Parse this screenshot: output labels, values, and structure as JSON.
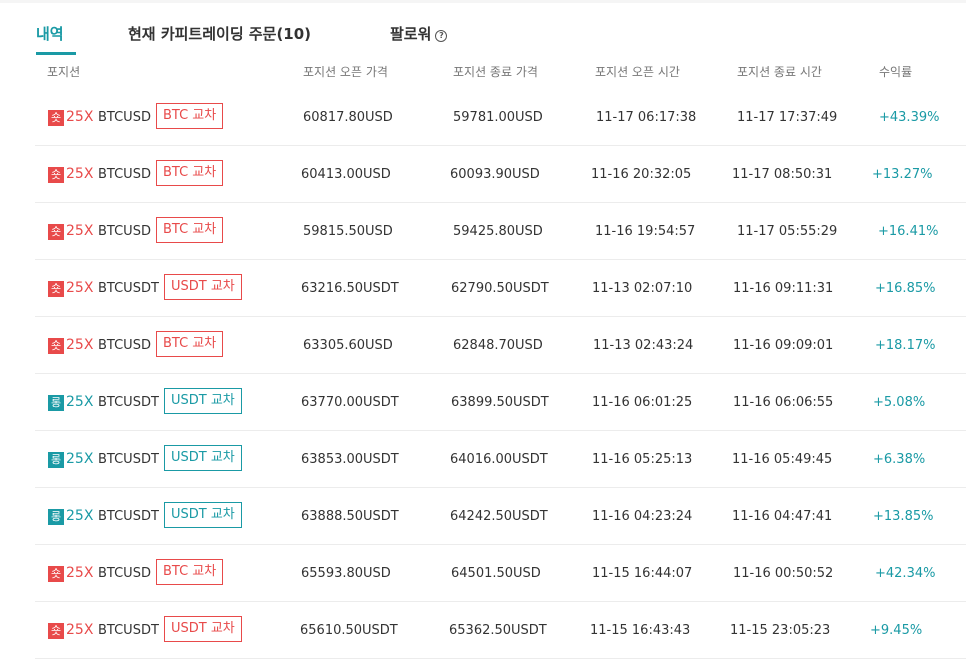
{
  "tabs": [
    {
      "label": "내역",
      "active": true
    },
    {
      "label": "현재 카피트레이딩 주문(10)",
      "active": false
    },
    {
      "label": "팔로워",
      "active": false,
      "help_icon": "?"
    }
  ],
  "columns": {
    "position": "포지션",
    "open_price": "포지션 오픈 가격",
    "close_price": "포지션 종료 가격",
    "open_time": "포지션 오픈 시간",
    "close_time": "포지션 종료 시간",
    "pnl": "수익률"
  },
  "colors": {
    "short": "#e84a4a",
    "long": "#1a9aa5",
    "accent": "#1a9aa5"
  },
  "rows": [
    {
      "side": "short",
      "side_label": "숏",
      "leverage": "25X",
      "symbol": "BTCUSD",
      "badge": "BTC 교차",
      "open_price": "60817.80USD",
      "close_price": "59781.00USD",
      "open_time": "11-17 06:17:38",
      "close_time": "11-17 17:37:49",
      "pnl": "+43.39%"
    },
    {
      "side": "short",
      "side_label": "숏",
      "leverage": "25X",
      "symbol": "BTCUSD",
      "badge": "BTC 교차",
      "open_price": "60413.00USD",
      "close_price": "60093.90USD",
      "open_time": "11-16 20:32:05",
      "close_time": "11-17 08:50:31",
      "pnl": "+13.27%"
    },
    {
      "side": "short",
      "side_label": "숏",
      "leverage": "25X",
      "symbol": "BTCUSD",
      "badge": "BTC 교차",
      "open_price": "59815.50USD",
      "close_price": "59425.80USD",
      "open_time": "11-16 19:54:57",
      "close_time": "11-17 05:55:29",
      "pnl": "+16.41%"
    },
    {
      "side": "short",
      "side_label": "숏",
      "leverage": "25X",
      "symbol": "BTCUSDT",
      "badge": "USDT 교차",
      "open_price": "63216.50USDT",
      "close_price": "62790.50USDT",
      "open_time": "11-13 02:07:10",
      "close_time": "11-16 09:11:31",
      "pnl": "+16.85%"
    },
    {
      "side": "short",
      "side_label": "숏",
      "leverage": "25X",
      "symbol": "BTCUSD",
      "badge": "BTC 교차",
      "open_price": "63305.60USD",
      "close_price": "62848.70USD",
      "open_time": "11-13 02:43:24",
      "close_time": "11-16 09:09:01",
      "pnl": "+18.17%"
    },
    {
      "side": "long",
      "side_label": "롱",
      "leverage": "25X",
      "symbol": "BTCUSDT",
      "badge": "USDT 교차",
      "open_price": "63770.00USDT",
      "close_price": "63899.50USDT",
      "open_time": "11-16 06:01:25",
      "close_time": "11-16 06:06:55",
      "pnl": "+5.08%"
    },
    {
      "side": "long",
      "side_label": "롱",
      "leverage": "25X",
      "symbol": "BTCUSDT",
      "badge": "USDT 교차",
      "open_price": "63853.00USDT",
      "close_price": "64016.00USDT",
      "open_time": "11-16 05:25:13",
      "close_time": "11-16 05:49:45",
      "pnl": "+6.38%"
    },
    {
      "side": "long",
      "side_label": "롱",
      "leverage": "25X",
      "symbol": "BTCUSDT",
      "badge": "USDT 교차",
      "open_price": "63888.50USDT",
      "close_price": "64242.50USDT",
      "open_time": "11-16 04:23:24",
      "close_time": "11-16 04:47:41",
      "pnl": "+13.85%"
    },
    {
      "side": "short",
      "side_label": "숏",
      "leverage": "25X",
      "symbol": "BTCUSD",
      "badge": "BTC 교차",
      "open_price": "65593.80USD",
      "close_price": "64501.50USD",
      "open_time": "11-15 16:44:07",
      "close_time": "11-16 00:50:52",
      "pnl": "+42.34%"
    },
    {
      "side": "short",
      "side_label": "숏",
      "leverage": "25X",
      "symbol": "BTCUSDT",
      "badge": "USDT 교차",
      "open_price": "65610.50USDT",
      "close_price": "65362.50USDT",
      "open_time": "11-15 16:43:43",
      "close_time": "11-15 23:05:23",
      "pnl": "+9.45%"
    }
  ]
}
